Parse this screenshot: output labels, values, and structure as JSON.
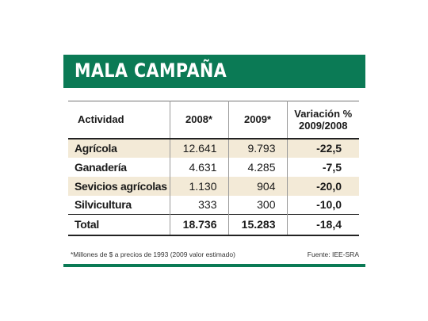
{
  "title": "MALA CAMPAÑA",
  "colors": {
    "banner": "#0b7a55",
    "row_shade": "#f3ead7"
  },
  "chart_data": {
    "type": "table",
    "columns": [
      "Actividad",
      "2008*",
      "2009*",
      "Variación % 2009/2008"
    ],
    "rows": [
      {
        "actividad": "Agrícola",
        "y2008": "12.641",
        "y2009": "9.793",
        "var": "-22,5",
        "shaded": true
      },
      {
        "actividad": "Ganadería",
        "y2008": "4.631",
        "y2009": "4.285",
        "var": "-7,5",
        "shaded": false
      },
      {
        "actividad": "Sevicios agrícolas",
        "y2008": "1.130",
        "y2009": "904",
        "var": "-20,0",
        "shaded": true
      },
      {
        "actividad": "Silvicultura",
        "y2008": "333",
        "y2009": "300",
        "var": "-10,0",
        "shaded": false
      }
    ],
    "total": {
      "actividad": "Total",
      "y2008": "18.736",
      "y2009": "15.283",
      "var": "-18,4"
    }
  },
  "footnote": "*Millones de $ a precios de 1993 (2009 valor estimado)",
  "source": "Fuente: IEE-SRA"
}
